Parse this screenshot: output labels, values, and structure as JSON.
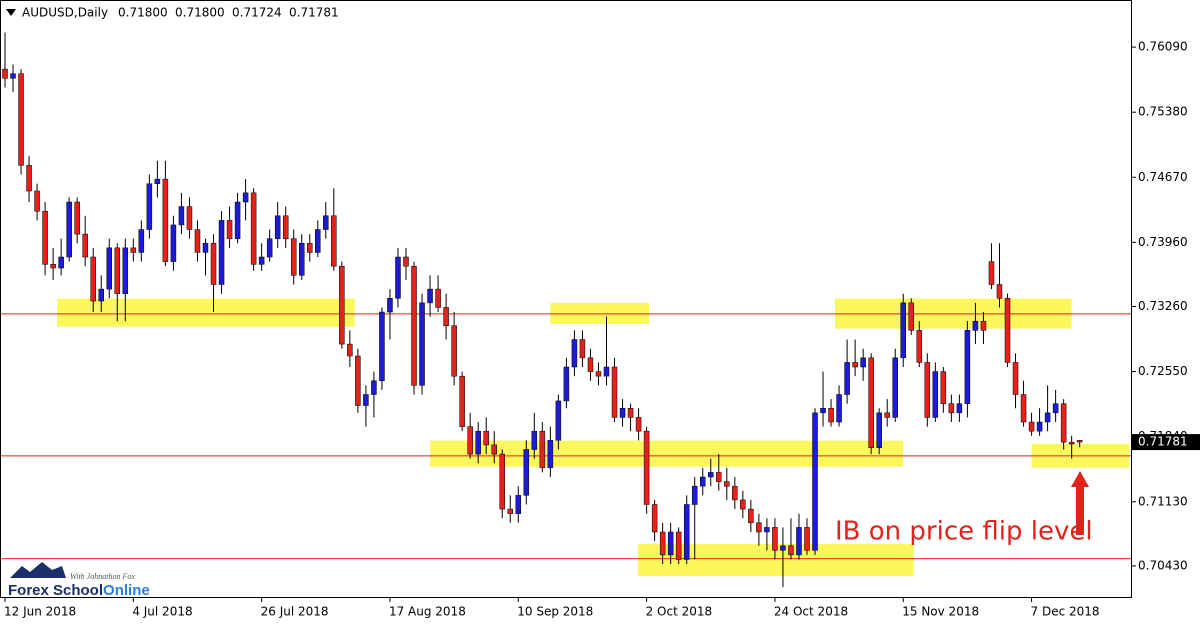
{
  "chart_data": {
    "type": "candlestick",
    "title": "AUDUSD,Daily",
    "header_values": [
      "0.71800",
      "0.71800",
      "0.71724",
      "0.71781"
    ],
    "ylim": [
      0.7008,
      0.76604
    ],
    "yticks": [
      {
        "value": 0.7609,
        "label": "0.76090"
      },
      {
        "value": 0.7538,
        "label": "0.75380"
      },
      {
        "value": 0.7467,
        "label": "0.74670"
      },
      {
        "value": 0.7396,
        "label": "0.73960"
      },
      {
        "value": 0.7326,
        "label": "0.73260"
      },
      {
        "value": 0.7255,
        "label": "0.72550"
      },
      {
        "value": 0.7184,
        "label": "0.71840"
      },
      {
        "value": 0.7113,
        "label": "0.71130"
      },
      {
        "value": 0.7043,
        "label": "0.70430"
      }
    ],
    "last_price": {
      "value": 0.71781,
      "label": "0.71781"
    },
    "categories": [
      "12 Jun 2018",
      null,
      null,
      null,
      null,
      null,
      null,
      null,
      null,
      null,
      null,
      null,
      null,
      null,
      null,
      null,
      "4 Jul 2018",
      null,
      null,
      null,
      null,
      null,
      null,
      null,
      null,
      null,
      null,
      null,
      null,
      null,
      null,
      null,
      "26 Jul 2018",
      null,
      null,
      null,
      null,
      null,
      null,
      null,
      null,
      null,
      null,
      null,
      null,
      null,
      null,
      null,
      "17 Aug 2018",
      null,
      null,
      null,
      null,
      null,
      null,
      null,
      null,
      null,
      null,
      null,
      null,
      null,
      null,
      null,
      "10 Sep 2018",
      null,
      null,
      null,
      null,
      null,
      null,
      null,
      null,
      null,
      null,
      null,
      null,
      null,
      null,
      null,
      "2 Oct 2018",
      null,
      null,
      null,
      null,
      null,
      null,
      null,
      null,
      null,
      null,
      null,
      null,
      null,
      null,
      null,
      "24 Oct 2018",
      null,
      null,
      null,
      null,
      null,
      null,
      null,
      null,
      null,
      null,
      null,
      null,
      null,
      null,
      null,
      "15 Nov 2018",
      null,
      null,
      null,
      null,
      null,
      null,
      null,
      null,
      null,
      null,
      null,
      null,
      null,
      null,
      null,
      "7 Dec 2018",
      null,
      null,
      null,
      null,
      null,
      null
    ],
    "ohlc": [
      [
        0.7585,
        0.7625,
        0.7565,
        0.7575
      ],
      [
        0.7575,
        0.759,
        0.756,
        0.758
      ],
      [
        0.758,
        0.7585,
        0.747,
        0.748
      ],
      [
        0.748,
        0.749,
        0.744,
        0.7452
      ],
      [
        0.7452,
        0.746,
        0.742,
        0.743
      ],
      [
        0.743,
        0.744,
        0.736,
        0.7372
      ],
      [
        0.7372,
        0.739,
        0.7355,
        0.7368
      ],
      [
        0.7368,
        0.74,
        0.736,
        0.738
      ],
      [
        0.738,
        0.7445,
        0.7375,
        0.744
      ],
      [
        0.744,
        0.7445,
        0.7395,
        0.7405
      ],
      [
        0.7405,
        0.7425,
        0.737,
        0.738
      ],
      [
        0.738,
        0.739,
        0.732,
        0.7332
      ],
      [
        0.7332,
        0.736,
        0.732,
        0.7345
      ],
      [
        0.7345,
        0.74,
        0.7335,
        0.739
      ],
      [
        0.739,
        0.7395,
        0.731,
        0.734
      ],
      [
        0.734,
        0.74,
        0.731,
        0.739
      ],
      [
        0.739,
        0.74,
        0.7375,
        0.7385
      ],
      [
        0.7385,
        0.742,
        0.7375,
        0.741
      ],
      [
        0.741,
        0.747,
        0.74,
        0.746
      ],
      [
        0.746,
        0.7485,
        0.7445,
        0.7465
      ],
      [
        0.7465,
        0.7485,
        0.737,
        0.7375
      ],
      [
        0.7375,
        0.7425,
        0.7365,
        0.7415
      ],
      [
        0.7415,
        0.745,
        0.7405,
        0.7435
      ],
      [
        0.7435,
        0.7445,
        0.74,
        0.741
      ],
      [
        0.741,
        0.742,
        0.7375,
        0.7385
      ],
      [
        0.7385,
        0.74,
        0.736,
        0.7395
      ],
      [
        0.7395,
        0.7405,
        0.732,
        0.735
      ],
      [
        0.735,
        0.743,
        0.734,
        0.742
      ],
      [
        0.742,
        0.7435,
        0.739,
        0.74
      ],
      [
        0.74,
        0.745,
        0.7395,
        0.744
      ],
      [
        0.744,
        0.7465,
        0.742,
        0.745
      ],
      [
        0.745,
        0.7455,
        0.7365,
        0.7372
      ],
      [
        0.7372,
        0.7395,
        0.7365,
        0.738
      ],
      [
        0.738,
        0.741,
        0.7375,
        0.74
      ],
      [
        0.74,
        0.744,
        0.739,
        0.7425
      ],
      [
        0.7425,
        0.7435,
        0.739,
        0.74
      ],
      [
        0.74,
        0.741,
        0.735,
        0.736
      ],
      [
        0.736,
        0.7405,
        0.7355,
        0.7395
      ],
      [
        0.7395,
        0.7405,
        0.7375,
        0.7385
      ],
      [
        0.7385,
        0.742,
        0.738,
        0.741
      ],
      [
        0.741,
        0.744,
        0.74,
        0.7425
      ],
      [
        0.7425,
        0.7455,
        0.7365,
        0.737
      ],
      [
        0.737,
        0.7375,
        0.728,
        0.7285
      ],
      [
        0.7285,
        0.73,
        0.726,
        0.7272
      ],
      [
        0.7272,
        0.728,
        0.721,
        0.7218
      ],
      [
        0.7218,
        0.724,
        0.7195,
        0.723
      ],
      [
        0.723,
        0.7255,
        0.7205,
        0.7245
      ],
      [
        0.7245,
        0.7325,
        0.7235,
        0.732
      ],
      [
        0.732,
        0.7345,
        0.729,
        0.7335
      ],
      [
        0.7335,
        0.739,
        0.7325,
        0.738
      ],
      [
        0.738,
        0.739,
        0.7355,
        0.737
      ],
      [
        0.737,
        0.7375,
        0.723,
        0.724
      ],
      [
        0.724,
        0.734,
        0.723,
        0.733
      ],
      [
        0.733,
        0.736,
        0.7315,
        0.7345
      ],
      [
        0.7345,
        0.736,
        0.732,
        0.7325
      ],
      [
        0.7325,
        0.734,
        0.729,
        0.7305
      ],
      [
        0.7305,
        0.732,
        0.724,
        0.725
      ],
      [
        0.725,
        0.7255,
        0.719,
        0.7195
      ],
      [
        0.7195,
        0.721,
        0.716,
        0.7165
      ],
      [
        0.7165,
        0.72,
        0.7155,
        0.719
      ],
      [
        0.719,
        0.7205,
        0.7165,
        0.7175
      ],
      [
        0.7175,
        0.719,
        0.7155,
        0.7165
      ],
      [
        0.7165,
        0.717,
        0.7095,
        0.7105
      ],
      [
        0.7105,
        0.712,
        0.709,
        0.71
      ],
      [
        0.71,
        0.713,
        0.709,
        0.712
      ],
      [
        0.712,
        0.718,
        0.711,
        0.717
      ],
      [
        0.717,
        0.721,
        0.716,
        0.719
      ],
      [
        0.719,
        0.72,
        0.7145,
        0.715
      ],
      [
        0.715,
        0.7195,
        0.714,
        0.718
      ],
      [
        0.718,
        0.723,
        0.717,
        0.7223
      ],
      [
        0.7223,
        0.727,
        0.7215,
        0.726
      ],
      [
        0.726,
        0.73,
        0.725,
        0.729
      ],
      [
        0.729,
        0.73,
        0.726,
        0.727
      ],
      [
        0.727,
        0.728,
        0.7245,
        0.7255
      ],
      [
        0.7255,
        0.7265,
        0.724,
        0.725
      ],
      [
        0.725,
        0.7315,
        0.724,
        0.726
      ],
      [
        0.726,
        0.727,
        0.72,
        0.7205
      ],
      [
        0.7205,
        0.7225,
        0.7195,
        0.7215
      ],
      [
        0.7215,
        0.722,
        0.719,
        0.7205
      ],
      [
        0.7205,
        0.7215,
        0.718,
        0.719
      ],
      [
        0.719,
        0.7195,
        0.71,
        0.711
      ],
      [
        0.711,
        0.7115,
        0.707,
        0.708
      ],
      [
        0.708,
        0.709,
        0.7045,
        0.7055
      ],
      [
        0.7055,
        0.709,
        0.7045,
        0.708
      ],
      [
        0.708,
        0.7085,
        0.7045,
        0.705
      ],
      [
        0.705,
        0.712,
        0.7045,
        0.711
      ],
      [
        0.711,
        0.714,
        0.705,
        0.713
      ],
      [
        0.713,
        0.715,
        0.712,
        0.714
      ],
      [
        0.714,
        0.716,
        0.713,
        0.7145
      ],
      [
        0.7145,
        0.7165,
        0.7125,
        0.7135
      ],
      [
        0.7135,
        0.715,
        0.7115,
        0.713
      ],
      [
        0.713,
        0.714,
        0.7105,
        0.7115
      ],
      [
        0.7115,
        0.7125,
        0.7095,
        0.7105
      ],
      [
        0.7105,
        0.7115,
        0.708,
        0.709
      ],
      [
        0.709,
        0.71,
        0.7065,
        0.708
      ],
      [
        0.708,
        0.7095,
        0.706,
        0.7085
      ],
      [
        0.7085,
        0.7095,
        0.705,
        0.706
      ],
      [
        0.706,
        0.7085,
        0.702,
        0.7065
      ],
      [
        0.7065,
        0.7095,
        0.705,
        0.7055
      ],
      [
        0.7055,
        0.71,
        0.705,
        0.7085
      ],
      [
        0.7085,
        0.7095,
        0.7055,
        0.706
      ],
      [
        0.706,
        0.7215,
        0.7055,
        0.721
      ],
      [
        0.721,
        0.7255,
        0.7195,
        0.7215
      ],
      [
        0.7215,
        0.7225,
        0.7195,
        0.72
      ],
      [
        0.72,
        0.724,
        0.7195,
        0.723
      ],
      [
        0.723,
        0.729,
        0.722,
        0.7265
      ],
      [
        0.7265,
        0.729,
        0.725,
        0.726
      ],
      [
        0.726,
        0.728,
        0.7245,
        0.727
      ],
      [
        0.727,
        0.7275,
        0.7165,
        0.7172
      ],
      [
        0.7172,
        0.7215,
        0.7165,
        0.721
      ],
      [
        0.721,
        0.7225,
        0.7195,
        0.7205
      ],
      [
        0.7205,
        0.728,
        0.72,
        0.727
      ],
      [
        0.727,
        0.734,
        0.726,
        0.733
      ],
      [
        0.733,
        0.7335,
        0.7295,
        0.73
      ],
      [
        0.73,
        0.731,
        0.726,
        0.7265
      ],
      [
        0.7265,
        0.7275,
        0.7195,
        0.7205
      ],
      [
        0.7205,
        0.7265,
        0.72,
        0.7255
      ],
      [
        0.7255,
        0.726,
        0.721,
        0.722
      ],
      [
        0.722,
        0.723,
        0.72,
        0.721
      ],
      [
        0.721,
        0.723,
        0.72,
        0.722
      ],
      [
        0.722,
        0.731,
        0.7205,
        0.73
      ],
      [
        0.73,
        0.733,
        0.7285,
        0.731
      ],
      [
        0.731,
        0.732,
        0.7285,
        0.73
      ],
      [
        0.7375,
        0.7395,
        0.7345,
        0.735
      ],
      [
        0.735,
        0.7395,
        0.7325,
        0.7335
      ],
      [
        0.7335,
        0.734,
        0.726,
        0.7265
      ],
      [
        0.7265,
        0.7275,
        0.7215,
        0.723
      ],
      [
        0.723,
        0.7245,
        0.7195,
        0.72
      ],
      [
        0.72,
        0.721,
        0.7185,
        0.719
      ],
      [
        0.719,
        0.7215,
        0.7185,
        0.72
      ],
      [
        0.72,
        0.724,
        0.719,
        0.721
      ],
      [
        0.721,
        0.7235,
        0.72,
        0.722
      ],
      [
        0.722,
        0.7225,
        0.717,
        0.7178
      ],
      [
        0.7178,
        0.7185,
        0.716,
        0.7176
      ],
      [
        0.718,
        0.718,
        0.71724,
        0.71781
      ]
    ],
    "bull_color": "#1c1cd4",
    "bear_color": "#e3221b",
    "levels": [
      0.7318,
      0.7163,
      0.7051
    ],
    "level_color": "#e0261c",
    "zones": [
      {
        "x": [
          6.5,
          43.6
        ],
        "y": [
          0.73041,
          0.73347
        ]
      },
      {
        "x": [
          68,
          80.3
        ],
        "y": [
          0.7307,
          0.733
        ]
      },
      {
        "x": [
          53,
          112
        ],
        "y": [
          0.71512,
          0.71796
        ]
      },
      {
        "x": [
          78.9,
          113.3
        ],
        "y": [
          0.7032,
          0.7067
        ]
      },
      {
        "x": [
          103.5,
          133
        ],
        "y": [
          0.73019,
          0.73347
        ]
      },
      {
        "x": [
          128,
          140.2
        ],
        "y": [
          0.71501,
          0.71763
        ]
      }
    ],
    "zone_color": "#fbf75c",
    "annotation": "IB on price flip level"
  },
  "watermark": {
    "tagline": "With Johnathon Fox",
    "name_a": "Forex School",
    "name_b": "Online"
  }
}
